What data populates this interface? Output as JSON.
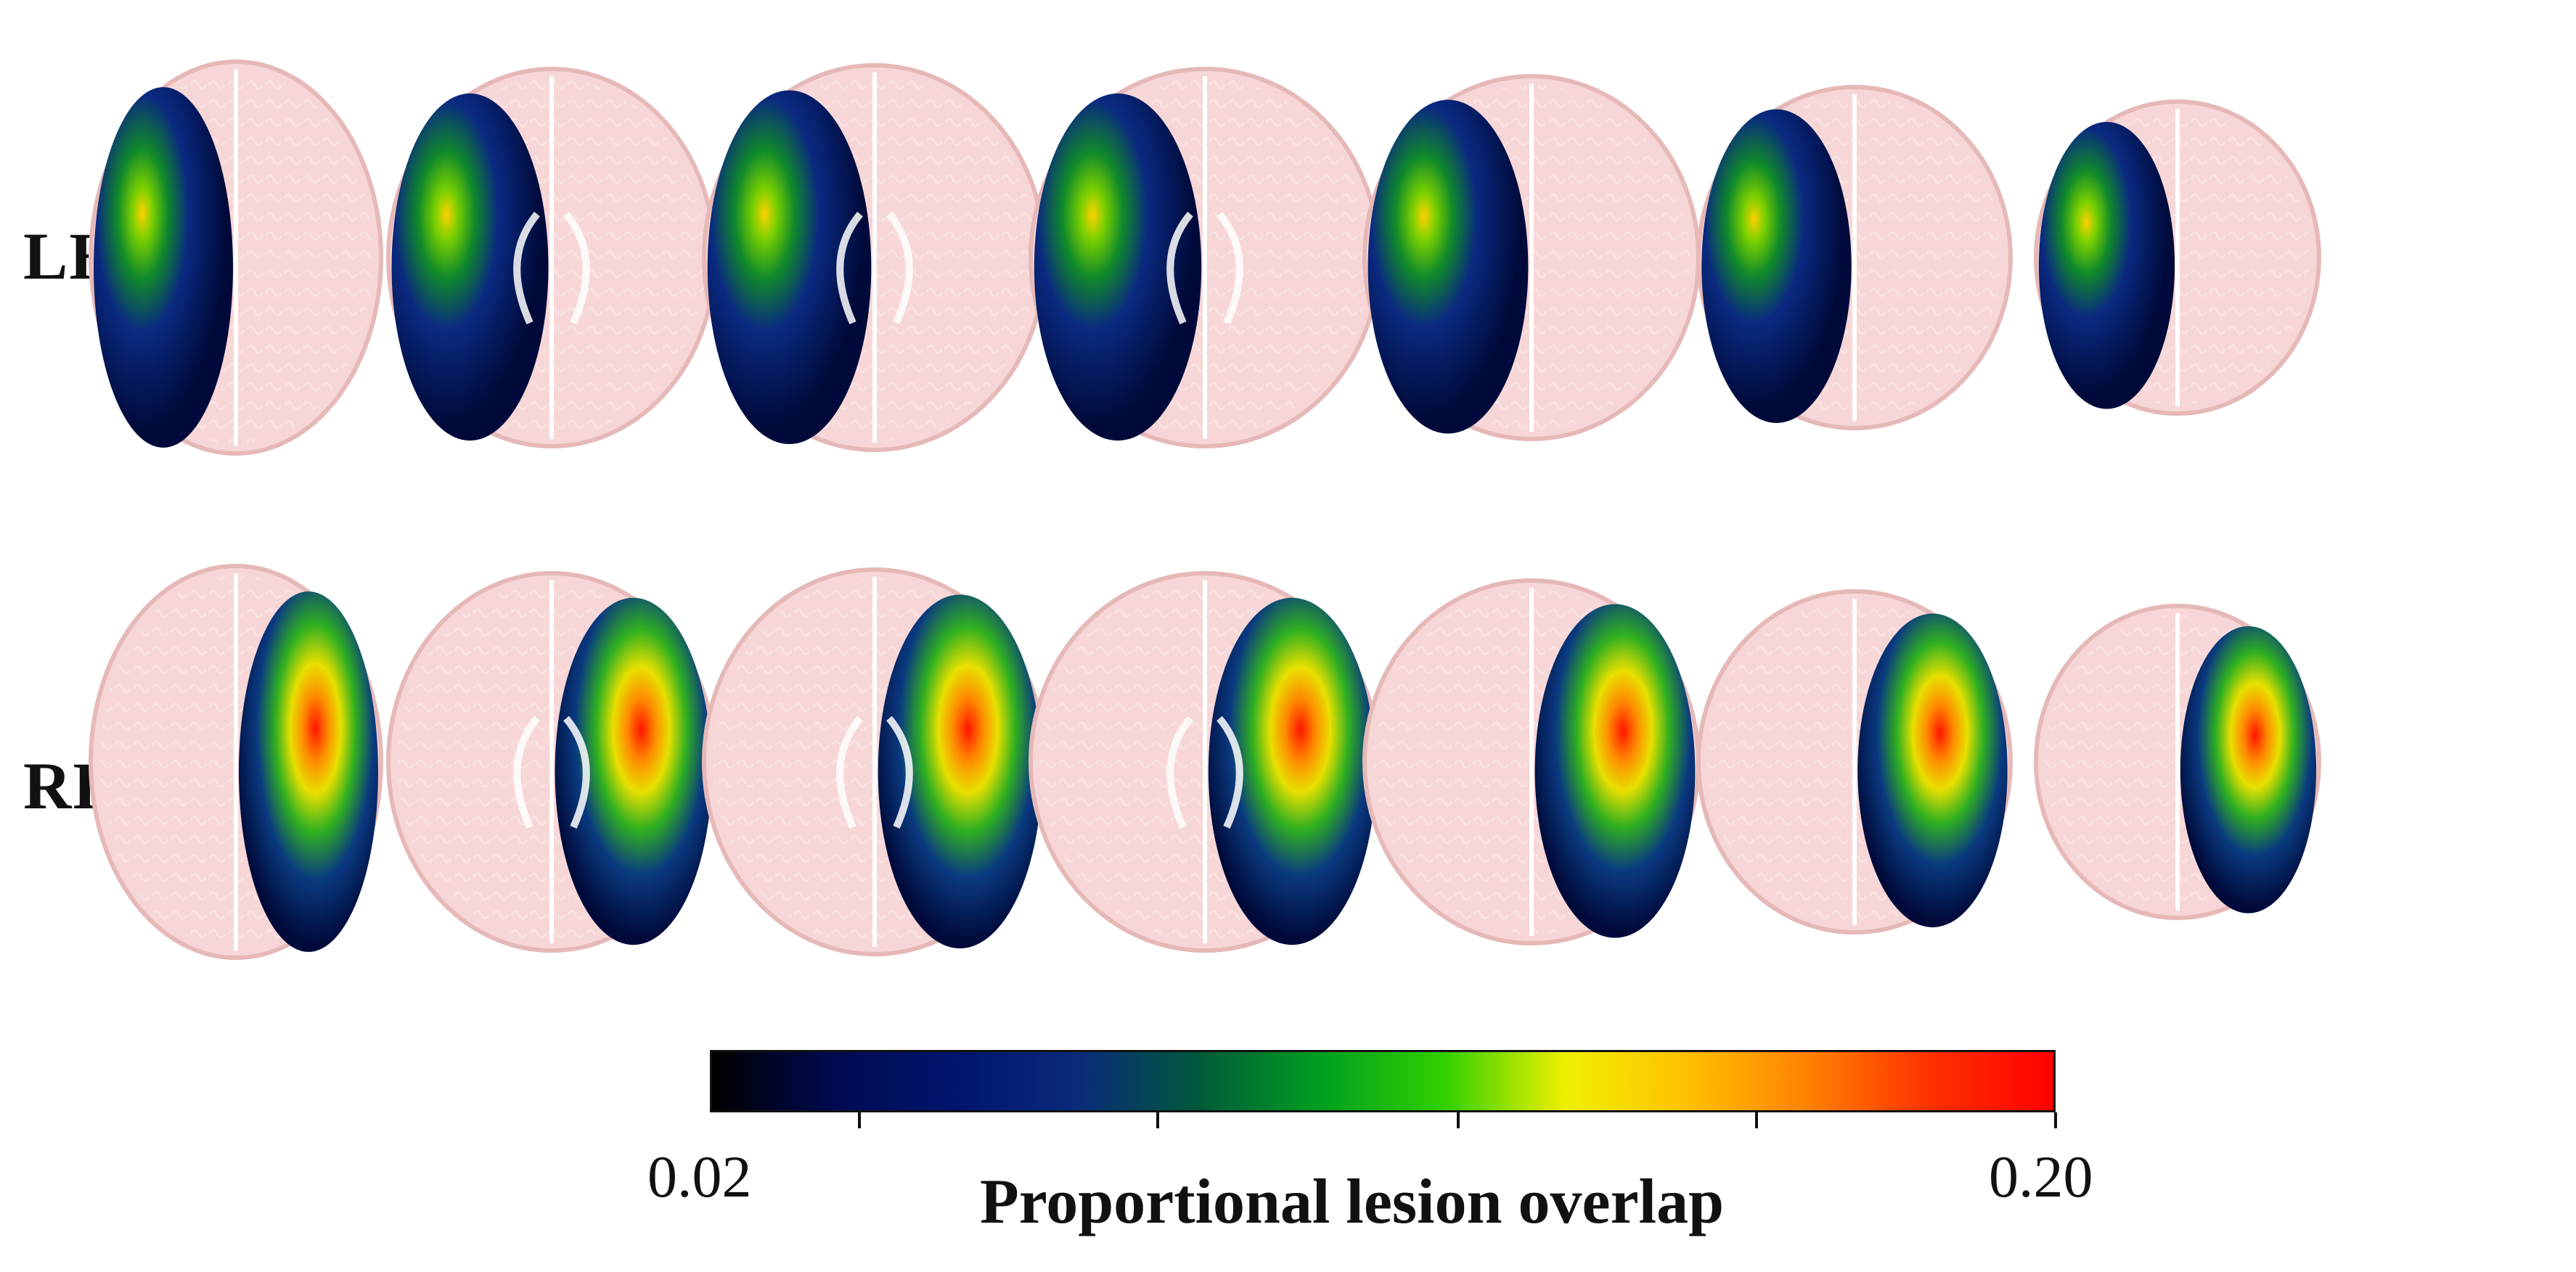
{
  "rows": [
    {
      "label": "LH",
      "hemisphere": "left"
    },
    {
      "label": "RH",
      "hemisphere": "right"
    }
  ],
  "slices_per_row": 7,
  "colorbar": {
    "min_label": "0.02",
    "max_label": "0.20",
    "title": "Proportional lesion overlap",
    "stops": [
      "#000000",
      "#000a50",
      "#00156e",
      "#0a2a7a",
      "#005a3a",
      "#00a020",
      "#30d000",
      "#f0f000",
      "#ffc000",
      "#ff8000",
      "#ff3000",
      "#ff0000"
    ],
    "tick_fractions": [
      0.111,
      0.333,
      0.556,
      0.778,
      1.0
    ]
  },
  "colors": {
    "brain": "#f6d6d6",
    "brain_edge": "#e6b8b8",
    "sulci": "#fbe6e6"
  }
}
